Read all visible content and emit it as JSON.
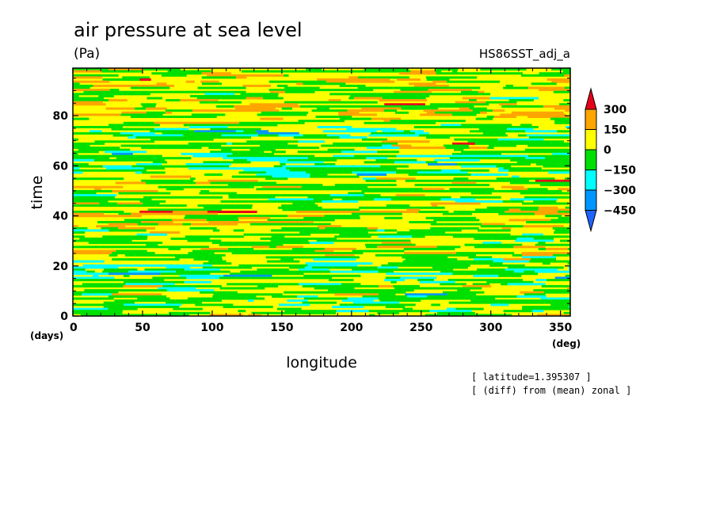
{
  "chart_data": {
    "type": "heatmap",
    "title": "air pressure at sea level",
    "units": "(Pa)",
    "run_name": "HS86SST_adj_a",
    "xlabel": "longitude",
    "ylabel": "time",
    "x_unit": "(deg)",
    "y_unit": "(days)",
    "xlim": [
      0,
      357
    ],
    "ylim": [
      0,
      99
    ],
    "x_ticks": [
      "0",
      "50",
      "100",
      "150",
      "200",
      "250",
      "300",
      "350"
    ],
    "y_ticks": [
      "0",
      "20",
      "40",
      "60",
      "80"
    ],
    "colorbar": {
      "levels": [
        "300",
        "150",
        "0",
        "−150",
        "−300",
        "−450"
      ],
      "colors": [
        "#e8001a",
        "#ffa500",
        "#ffff00",
        "#00e000",
        "#00ffff",
        "#0096ff",
        "#1e64ff"
      ],
      "extend": "both"
    },
    "notes": [
      "[ latitude=1.395307 ]",
      "[ (diff) from (mean) zonal ]"
    ]
  }
}
